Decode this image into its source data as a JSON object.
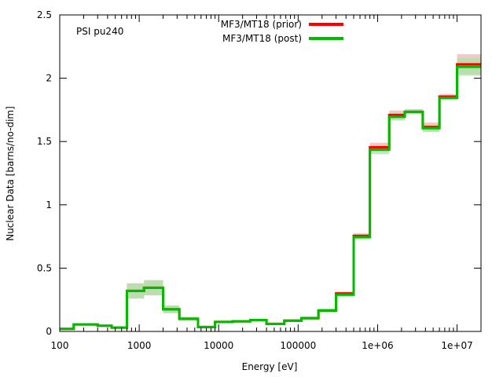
{
  "chart_data": {
    "type": "line",
    "style": "step",
    "title": "",
    "annotation": "PSI pu240",
    "xlabel": "Energy [eV]",
    "ylabel": "Nuclear Data [barns/no-dim]",
    "xscale": "log",
    "xlim": [
      100,
      20000000
    ],
    "ylim": [
      0,
      2.5
    ],
    "grid": false,
    "legend_position": "top-center",
    "x_ticks": [
      {
        "value": 100,
        "label": "100"
      },
      {
        "value": 1000,
        "label": "1000"
      },
      {
        "value": 10000,
        "label": "10000"
      },
      {
        "value": 100000,
        "label": "100000"
      },
      {
        "value": 1000000,
        "label": "1e+06"
      },
      {
        "value": 10000000,
        "label": "1e+07"
      }
    ],
    "y_ticks": [
      {
        "value": 0,
        "label": "0"
      },
      {
        "value": 0.5,
        "label": "0.5"
      },
      {
        "value": 1,
        "label": "1"
      },
      {
        "value": 1.5,
        "label": "1.5"
      },
      {
        "value": 2,
        "label": "2"
      },
      {
        "value": 2.5,
        "label": "2.5"
      }
    ],
    "bin_edges": [
      100,
      150,
      300,
      450,
      700,
      1150,
      2000,
      3200,
      5500,
      9000,
      15000,
      25000,
      40000,
      67000,
      110000,
      180000,
      300000,
      500000,
      800000,
      1400000,
      2200000,
      3700000,
      6000000,
      10000000,
      20000000
    ],
    "series": [
      {
        "name": "MF3/MT18 (prior)",
        "color": "#ff0000",
        "band_color": "#f4b4b4",
        "values": [
          0.02,
          0.055,
          0.045,
          0.03,
          0.32,
          0.345,
          0.175,
          0.1,
          0.035,
          0.075,
          0.08,
          0.09,
          0.06,
          0.085,
          0.105,
          0.165,
          0.3,
          0.755,
          1.455,
          1.71,
          1.735,
          1.615,
          1.855,
          2.11
        ],
        "uncertainty": [
          0.005,
          0.008,
          0.008,
          0.005,
          0.06,
          0.06,
          0.03,
          0.015,
          0.006,
          0.01,
          0.01,
          0.01,
          0.008,
          0.01,
          0.012,
          0.015,
          0.015,
          0.02,
          0.035,
          0.035,
          0.02,
          0.035,
          0.02,
          0.08
        ]
      },
      {
        "name": "MF3/MT18 (post)",
        "color": "#00bb00",
        "band_color": "#a8e4a8",
        "values": [
          0.02,
          0.055,
          0.045,
          0.03,
          0.32,
          0.345,
          0.175,
          0.1,
          0.035,
          0.075,
          0.08,
          0.09,
          0.06,
          0.085,
          0.105,
          0.165,
          0.29,
          0.745,
          1.435,
          1.695,
          1.735,
          1.605,
          1.845,
          2.09
        ],
        "uncertainty": [
          0.005,
          0.008,
          0.008,
          0.005,
          0.06,
          0.06,
          0.03,
          0.015,
          0.006,
          0.01,
          0.01,
          0.01,
          0.008,
          0.01,
          0.012,
          0.015,
          0.015,
          0.02,
          0.035,
          0.03,
          0.02,
          0.03,
          0.02,
          0.07
        ]
      }
    ]
  }
}
